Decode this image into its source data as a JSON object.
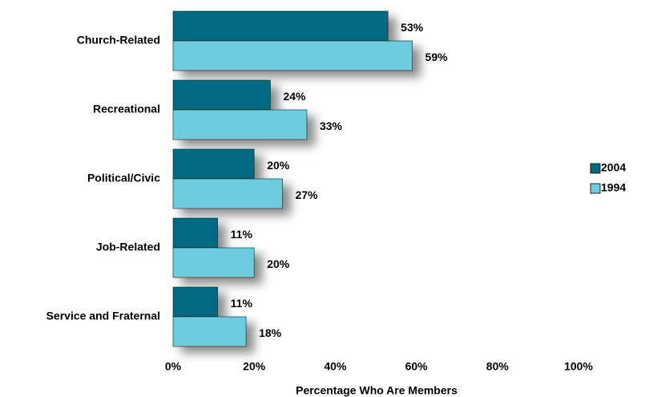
{
  "chart_data": {
    "type": "bar",
    "orientation": "horizontal",
    "x_label": "Percentage Who Are Members",
    "categories": [
      "Church-Related",
      "Recreational",
      "Political/Civic",
      "Job-Related",
      "Service and Fraternal"
    ],
    "series": [
      {
        "name": "2004",
        "color": "#006b80",
        "values": [
          53,
          24,
          20,
          11,
          11
        ],
        "value_labels": [
          "53%",
          "24%",
          "20%",
          "11%",
          "11%"
        ]
      },
      {
        "name": "1994",
        "color": "#6dcddf",
        "values": [
          59,
          33,
          27,
          20,
          18
        ],
        "value_labels": [
          "59%",
          "33%",
          "27%",
          "20%",
          "18%"
        ]
      }
    ],
    "xlim": [
      0,
      100
    ],
    "xticks": [
      {
        "value": 0,
        "label": "0%"
      },
      {
        "value": 20,
        "label": "20%"
      },
      {
        "value": 40,
        "label": "40%"
      },
      {
        "value": 60,
        "label": "60%"
      },
      {
        "value": 80,
        "label": "80%"
      },
      {
        "value": 100,
        "label": "100%"
      }
    ],
    "legend": "right"
  }
}
